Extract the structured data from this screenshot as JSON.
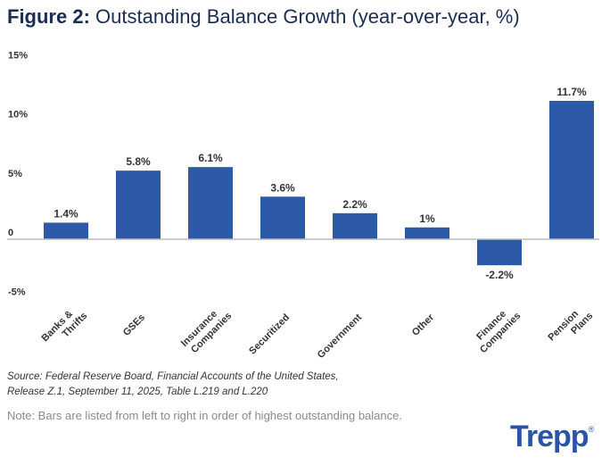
{
  "title": {
    "prefix": "Figure 2:",
    "text": "Outstanding Balance Growth (year-over-year, %)"
  },
  "chart_data": {
    "type": "bar",
    "categories": [
      [
        "Banks &",
        "Thrifts"
      ],
      [
        "GSEs"
      ],
      [
        "Insurance",
        "Companies"
      ],
      [
        "Securitized"
      ],
      [
        "Government"
      ],
      [
        "Other"
      ],
      [
        "Finance",
        "Companies"
      ],
      [
        "Pension",
        "Plans"
      ]
    ],
    "values": [
      1.4,
      5.8,
      6.1,
      3.6,
      2.2,
      1.0,
      -2.2,
      11.7
    ],
    "data_labels": [
      "1.4%",
      "5.8%",
      "6.1%",
      "3.6%",
      "2.2%",
      "1%",
      "-2.2%",
      "11.7%"
    ],
    "yticks": [
      {
        "v": 15,
        "label": "15%"
      },
      {
        "v": 10,
        "label": "10%"
      },
      {
        "v": 5,
        "label": "5%"
      },
      {
        "v": 0,
        "label": "0"
      },
      {
        "v": -5,
        "label": "-5%"
      }
    ],
    "ylim": [
      -5,
      15
    ],
    "grid": false,
    "bar_color": "#2d5aa8"
  },
  "source": {
    "line1": "Source: Federal Reserve Board, Financial Accounts of the United States,",
    "line2": "Release Z.1, September 11, 2025, Table L.219 and L.220"
  },
  "note": "Note: Bars are listed from left to right in order of highest outstanding balance.",
  "logo": {
    "text": "Trepp",
    "mark": "®"
  }
}
